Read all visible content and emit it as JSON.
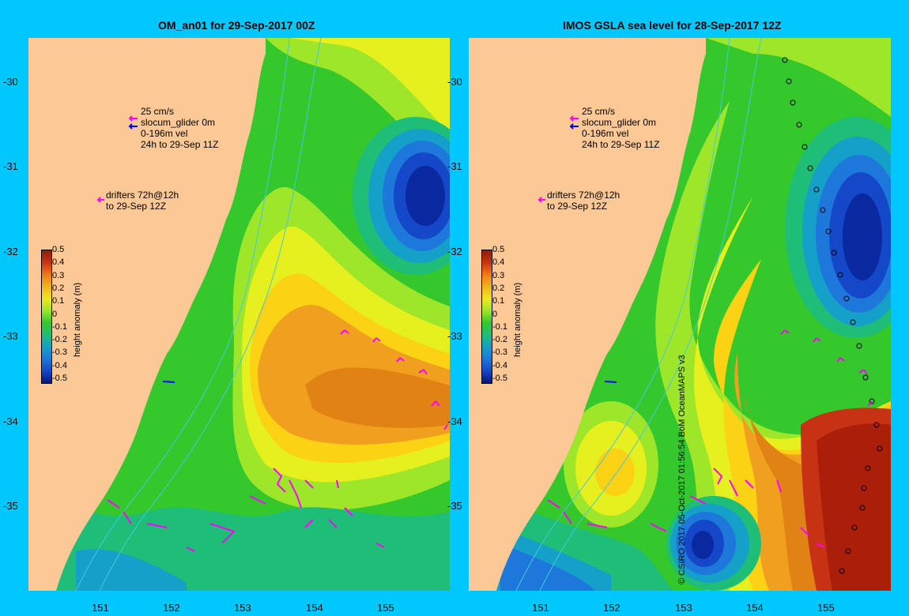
{
  "panels": [
    {
      "title": "OM_an01 for 29-Sep-2017 00Z",
      "legend": {
        "speed": "25 cm/s",
        "glider": "slocum_glider 0m",
        "vel": "0-196m vel",
        "period": "24h to 29-Sep 11Z",
        "drifters1": "drifters 72h@12h",
        "drifters2": "to 29-Sep 12Z"
      },
      "colorbar_title": "height anomaly (m)"
    },
    {
      "title": "IMOS GSLA sea level  for 28-Sep-2017 12Z",
      "legend": {
        "speed": "25 cm/s",
        "glider": "slocum_glider 0m",
        "vel": "0-196m vel",
        "period": "24h to 29-Sep 11Z",
        "drifters1": "drifters 72h@12h",
        "drifters2": "to 29-Sep 12Z"
      },
      "colorbar_title": "height anomaly (m)"
    }
  ],
  "y_ticks": [
    "-30",
    "-31",
    "-32",
    "-33",
    "-34",
    "-35"
  ],
  "x_ticks": [
    "151",
    "152",
    "153",
    "154",
    "155"
  ],
  "colorbar_ticks": [
    "0.5",
    "0.4",
    "0.3",
    "0.2",
    "0.1",
    "0",
    "-0.1",
    "-0.2",
    "-0.3",
    "-0.4",
    "-0.5"
  ],
  "credit": "© CSIRO 2017  05-Oct-2017 01:56:54 BoM OceanMAPS v3",
  "colors": {
    "land": "#fcc896",
    "background": "#00c8ff",
    "arrow": "#ff00ff",
    "glider": "#0000ff"
  }
}
